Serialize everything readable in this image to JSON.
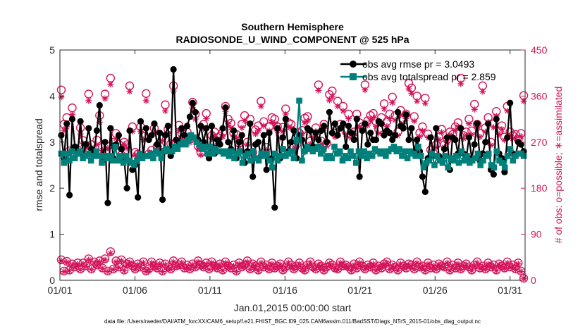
{
  "chart_data": {
    "type": "line",
    "title": "Southern Hemisphere",
    "subtitle": "RADIOSONDE_U_WIND_COMPONENT @ 525 hPa",
    "xlabel": "Jan.01,2015 00:00:00 start",
    "ylabel": "rmse and totalspread",
    "ylabel_right": "# of obs: o=possible; ∗=assimilated",
    "footer": "data file: /Users/raeder/DAI/ATM_forcXX/CAM6_setup/f.e21.FHIST_BGC.f09_025.CAM6assim.011/BadSST/Diags_NTrS_2015-01/obs_diag_output.nc",
    "xlim": [
      1,
      32
    ],
    "ylim": [
      0,
      5
    ],
    "ylim_right": [
      0,
      450
    ],
    "x_ticks": [
      1,
      6,
      11,
      16,
      21,
      26,
      31
    ],
    "x_tick_labels": [
      "01/01",
      "01/06",
      "01/11",
      "01/16",
      "01/21",
      "01/26",
      "01/31"
    ],
    "y_ticks": [
      0,
      1,
      2,
      3,
      4,
      5
    ],
    "y_tick_labels": [
      "0",
      "1",
      "2",
      "3",
      "4",
      "5"
    ],
    "y_ticks_right": [
      0,
      90,
      180,
      270,
      360,
      450
    ],
    "y_tick_labels_right": [
      "0",
      "90",
      "180",
      "270",
      "360",
      "450"
    ],
    "legend_position": "top-right",
    "grid": false,
    "colors": {
      "rmse": "#000000",
      "spread": "#00807a",
      "obs": "#d4145a"
    },
    "series": [
      {
        "name": "obs avg rmse pr = 3.0493",
        "values": [
          3.15,
          2.65,
          3.4,
          1.85,
          3.5,
          2.9,
          2.75,
          3.45,
          2.7,
          2.95,
          3.3,
          2.85,
          2.8,
          3.25,
          3.8,
          2.6,
          3.0,
          1.68,
          3.3,
          2.65,
          2.95,
          3.15,
          2.85,
          2.6,
          2.0,
          3.25,
          2.4,
          2.5,
          1.8,
          3.45,
          2.7,
          3.3,
          3.05,
          3.15,
          3.4,
          2.95,
          3.2,
          1.75,
          3.15,
          3.35,
          2.7,
          4.58,
          3.05,
          2.95,
          3.3,
          3.15,
          3.35,
          3.55,
          3.85,
          3.65,
          3.05,
          3.35,
          3.0,
          3.3,
          2.65,
          3.35,
          2.75,
          3.05,
          2.95,
          3.3,
          3.75,
          3.0,
          2.85,
          3.25,
          2.65,
          3.0,
          3.15,
          2.55,
          2.8,
          3.4,
          2.25,
          2.95,
          3.0,
          2.7,
          3.15,
          2.4,
          3.2,
          2.65,
          1.58,
          3.3,
          2.65,
          3.1,
          3.5,
          2.8,
          3.0,
          3.25,
          2.65,
          3.15,
          3.05,
          2.8,
          3.3,
          3.25,
          2.9,
          3.2,
          3.05,
          3.25,
          3.35,
          3.0,
          3.65,
          3.2,
          3.4,
          3.15,
          3.3,
          3.4,
          2.9,
          3.35,
          3.2,
          3.05,
          3.5,
          2.25,
          3.25,
          3.4,
          2.95,
          3.2,
          3.05,
          3.05,
          3.45,
          3.4,
          3.15,
          3.25,
          3.2,
          3.05,
          3.15,
          3.65,
          3.35,
          3.3,
          3.6,
          3.05,
          3.3,
          2.8,
          3.05,
          2.8,
          2.25,
          1.92,
          2.65,
          3.1,
          2.7,
          3.3,
          2.7,
          2.6,
          2.85,
          3.1,
          2.4,
          3.1,
          3.05,
          2.75,
          3.3,
          2.75,
          2.65,
          3.1,
          2.65,
          2.95,
          3.4,
          2.6,
          2.75,
          3.0,
          3.4,
          2.4,
          2.3,
          3.5,
          2.75,
          2.65,
          2.35,
          3.1,
          3.85,
          2.75,
          2.7,
          3.0,
          2.95,
          2.8
        ]
      },
      {
        "name": "obs avg totalspread pr = 2.859",
        "values": [
          2.75,
          2.55,
          2.75,
          2.6,
          2.8,
          2.65,
          2.75,
          2.8,
          2.65,
          2.7,
          2.75,
          2.6,
          2.7,
          2.8,
          2.7,
          2.55,
          2.7,
          2.65,
          2.7,
          2.6,
          2.9,
          2.6,
          2.7,
          2.55,
          2.7,
          2.6,
          2.55,
          2.5,
          2.6,
          2.75,
          2.65,
          2.7,
          2.7,
          2.75,
          2.65,
          2.8,
          2.75,
          2.65,
          2.8,
          2.85,
          2.8,
          2.8,
          2.9,
          2.85,
          2.95,
          3.0,
          2.95,
          3.05,
          3.15,
          3.1,
          3.0,
          2.95,
          2.85,
          2.9,
          2.75,
          2.9,
          2.75,
          2.85,
          2.8,
          2.8,
          2.75,
          2.8,
          2.7,
          2.8,
          2.65,
          2.75,
          2.8,
          2.55,
          2.7,
          2.75,
          2.6,
          2.8,
          2.65,
          2.6,
          2.75,
          2.7,
          2.75,
          2.6,
          2.45,
          2.75,
          2.6,
          2.7,
          2.85,
          2.7,
          2.75,
          2.8,
          2.65,
          3.05,
          3.9,
          2.6,
          2.8,
          2.9,
          2.85,
          2.8,
          2.85,
          2.9,
          2.75,
          2.85,
          2.65,
          2.7,
          2.65,
          2.9,
          2.75,
          2.8,
          2.6,
          2.7,
          2.65,
          2.8,
          2.7,
          2.55,
          2.8,
          2.7,
          2.8,
          2.65,
          2.75,
          2.7,
          2.85,
          2.8,
          2.75,
          2.8,
          2.7,
          2.8,
          2.85,
          2.9,
          2.8,
          2.85,
          2.7,
          2.8,
          2.65,
          2.8,
          2.75,
          2.7,
          2.9,
          2.7,
          2.45,
          2.55,
          2.6,
          2.75,
          2.5,
          2.7,
          2.6,
          2.55,
          2.7,
          2.45,
          2.65,
          2.6,
          2.7,
          2.55,
          2.8,
          2.6,
          2.7,
          2.55,
          2.6,
          2.65,
          2.75,
          2.5,
          2.6,
          2.7,
          2.75,
          2.5,
          2.45,
          2.8,
          2.6,
          2.55,
          2.45,
          2.7,
          2.85,
          2.6,
          2.7,
          2.75,
          2.75,
          2.7
        ]
      },
      {
        "name": "obs possible",
        "axis": "right",
        "values": [
          372,
          305,
          318,
          253,
          337,
          258,
          255,
          298,
          273,
          264,
          364,
          265,
          250,
          274,
          322,
          260,
          364,
          262,
          395,
          270,
          287,
          266,
          245,
          270,
          265,
          380,
          300,
          250,
          247,
          300,
          281,
          365,
          247,
          254,
          297,
          262,
          262,
          280,
          343,
          295,
          267,
          380,
          270,
          303,
          287,
          281,
          290,
          276,
          348,
          325,
          262,
          250,
          305,
          326,
          250,
          283,
          290,
          270,
          282,
          289,
          340,
          315,
          307,
          288,
          285,
          268,
          305,
          322,
          270,
          315,
          250,
          294,
          302,
          350,
          310,
          260,
          300,
          318,
          315,
          300,
          285,
          299,
          335,
          308,
          305,
          262,
          266,
          288,
          293,
          317,
          320,
          272,
          285,
          298,
          382,
          272,
          305,
          268,
          363,
          370,
          287,
          350,
          305,
          340,
          292,
          325,
          285,
          290,
          325,
          308,
          300,
          382,
          312,
          322,
          326,
          310,
          295,
          318,
          345,
          310,
          325,
          358,
          322,
          290,
          332,
          315,
          325,
          385,
          376,
          320,
          360,
          288,
          300,
          356,
          286,
          255,
          248,
          265,
          280,
          295,
          265,
          275,
          290,
          285,
          300,
          308,
          395,
          283,
          290,
          315,
          292,
          344,
          305,
          287,
          380,
          298,
          318,
          270,
          306,
          330,
          292,
          302,
          280,
          340,
          290,
          283,
          285,
          275,
          287,
          361
        ],
        "assimilated": [
          358,
          293,
          300,
          248,
          324,
          254,
          251,
          286,
          267,
          259,
          351,
          259,
          246,
          265,
          309,
          254,
          355,
          258,
          383,
          263,
          277,
          259,
          241,
          265,
          258,
          369,
          291,
          245,
          242,
          291,
          275,
          351,
          243,
          249,
          288,
          258,
          258,
          273,
          331,
          287,
          262,
          370,
          263,
          293,
          279,
          273,
          282,
          269,
          337,
          315,
          257,
          245,
          296,
          316,
          245,
          276,
          282,
          264,
          275,
          281,
          330,
          306,
          298,
          280,
          278,
          262,
          298,
          312,
          265,
          306,
          245,
          286,
          293,
          340,
          302,
          254,
          292,
          309,
          306,
          292,
          278,
          291,
          325,
          300,
          297,
          257,
          261,
          281,
          286,
          308,
          311,
          266,
          279,
          291,
          371,
          266,
          297,
          262,
          352,
          359,
          280,
          340,
          297,
          331,
          285,
          316,
          278,
          283,
          316,
          300,
          292,
          372,
          303,
          313,
          317,
          301,
          287,
          309,
          335,
          301,
          316,
          347,
          313,
          283,
          323,
          306,
          316,
          374,
          365,
          311,
          350,
          281,
          292,
          346,
          279,
          250,
          243,
          260,
          275,
          289,
          260,
          270,
          284,
          279,
          293,
          300,
          384,
          277,
          284,
          306,
          285,
          334,
          297,
          280,
          369,
          290,
          309,
          264,
          299,
          321,
          285,
          295,
          274,
          331,
          284,
          277,
          279,
          270,
          281,
          350
        ]
      },
      {
        "name": "obs possible low",
        "axis": "right",
        "values": [
          40,
          18,
          37,
          20,
          32,
          26,
          34,
          22,
          34,
          28,
          42,
          22,
          36,
          30,
          38,
          24,
          42,
          18,
          56,
          22,
          38,
          26,
          40,
          20,
          32,
          36,
          28,
          22,
          32,
          26,
          36,
          18,
          22,
          36,
          28,
          24,
          34,
          18,
          32,
          26,
          22,
          38,
          28,
          30,
          36,
          24,
          30,
          22,
          32,
          26,
          38,
          30,
          26,
          34,
          22,
          36,
          28,
          24,
          32,
          20,
          36,
          28,
          24,
          30,
          18,
          34,
          26,
          30,
          38,
          22,
          32,
          28,
          20,
          36,
          26,
          30,
          22,
          34,
          24,
          28,
          32,
          20,
          26,
          36,
          30,
          22,
          28,
          34,
          24,
          20,
          30,
          36,
          26,
          22,
          32,
          28,
          20,
          26,
          34,
          30,
          24,
          22,
          36,
          28,
          30,
          26,
          20,
          32,
          24,
          36,
          28,
          22,
          30,
          26,
          34,
          20,
          28,
          24,
          32,
          36,
          22,
          30,
          26,
          20,
          34,
          28,
          24,
          32,
          30,
          22,
          36,
          26,
          28,
          20,
          34,
          24,
          30,
          22,
          32,
          28,
          26,
          36,
          20,
          30,
          24,
          34,
          22,
          28,
          32,
          26,
          20,
          30,
          36,
          24,
          28,
          22,
          34,
          26,
          30,
          20,
          32,
          28,
          24,
          36,
          26,
          30,
          22,
          34,
          18,
          4
        ],
        "assimilated": [
          38,
          17,
          35,
          19,
          30,
          25,
          32,
          21,
          32,
          27,
          40,
          21,
          34,
          28,
          36,
          23,
          40,
          17,
          53,
          21,
          36,
          25,
          38,
          19,
          30,
          34,
          27,
          21,
          30,
          25,
          34,
          17,
          21,
          34,
          27,
          23,
          32,
          17,
          30,
          25,
          21,
          36,
          27,
          28,
          34,
          23,
          28,
          21,
          30,
          25,
          36,
          28,
          25,
          32,
          21,
          34,
          27,
          23,
          30,
          19,
          34,
          27,
          23,
          28,
          17,
          32,
          25,
          28,
          36,
          21,
          30,
          27,
          19,
          34,
          25,
          28,
          21,
          32,
          23,
          27,
          30,
          19,
          25,
          34,
          28,
          21,
          27,
          32,
          23,
          19,
          28,
          34,
          25,
          21,
          30,
          27,
          19,
          25,
          32,
          28,
          23,
          21,
          34,
          27,
          28,
          25,
          19,
          30,
          23,
          34,
          27,
          21,
          28,
          25,
          32,
          19,
          27,
          23,
          30,
          34,
          21,
          28,
          25,
          19,
          32,
          27,
          23,
          30,
          28,
          21,
          34,
          25,
          27,
          19,
          32,
          23,
          28,
          21,
          30,
          27,
          25,
          34,
          19,
          28,
          23,
          32,
          21,
          27,
          30,
          25,
          19,
          28,
          34,
          23,
          27,
          21,
          32,
          25,
          28,
          19,
          30,
          27,
          23,
          34,
          25,
          28,
          21,
          32,
          17,
          4
        ]
      }
    ]
  }
}
